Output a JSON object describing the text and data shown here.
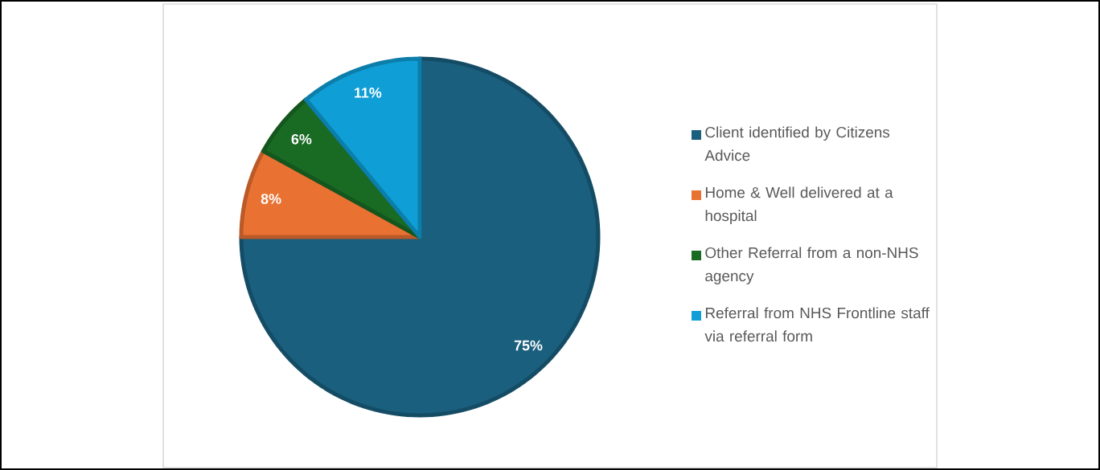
{
  "chart_data": {
    "type": "pie",
    "categories": [
      "Client identified by Citizens Advice",
      "Home & Well delivered at a hospital",
      "Other Referral from a non-NHS agency",
      "Referral from NHS Frontline staff via referral form"
    ],
    "values": [
      75,
      8,
      6,
      11
    ],
    "colors": [
      "#1a5f7e",
      "#e97132",
      "#196b24",
      "#0f9ed5"
    ],
    "value_labels": [
      "75%",
      "8%",
      "6%",
      "11%"
    ],
    "legend": "right"
  }
}
